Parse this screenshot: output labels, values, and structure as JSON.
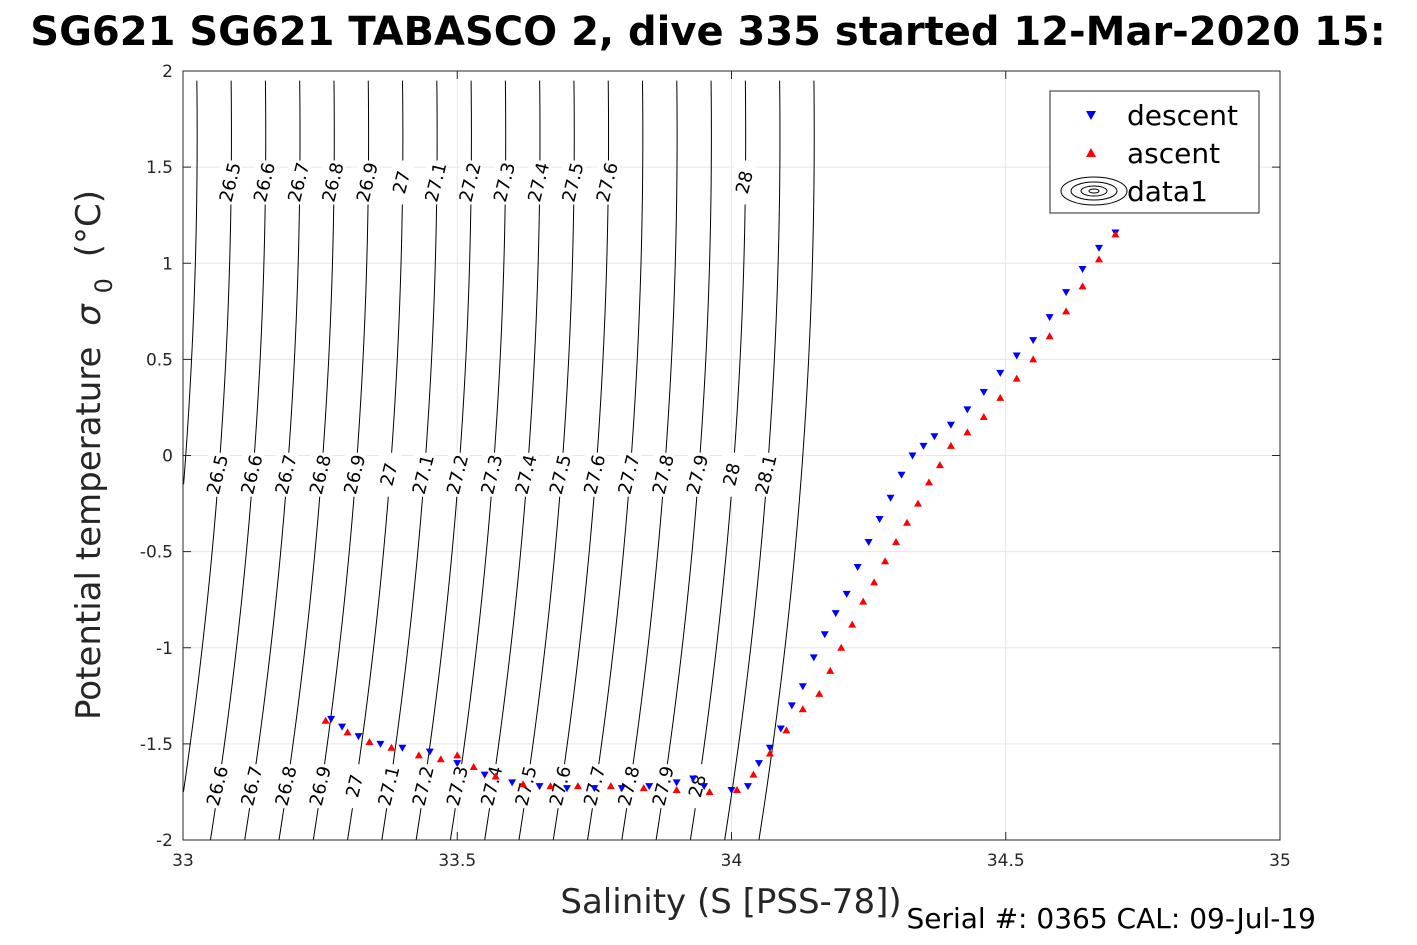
{
  "chart_data": {
    "type": "scatter",
    "title": "SG621 SG621 TABASCO 2, dive 335 started 12-Mar-2020 15:",
    "xlabel": "Salinity (S [PSS-78])",
    "ylabel": "Potential temperature",
    "ylabel_symbol": "σ",
    "ylabel_subscript": "0",
    "ylabel_unit": "(°C)",
    "xlim": [
      33,
      35
    ],
    "ylim": [
      -2,
      2
    ],
    "xticks": [
      33,
      33.5,
      34,
      34.5,
      35
    ],
    "xtick_labels": [
      "33",
      "33.5",
      "34",
      "34.5",
      "35"
    ],
    "yticks": [
      -2,
      -1.5,
      -1,
      -0.5,
      0,
      0.5,
      1,
      1.5,
      2
    ],
    "ytick_labels": [
      "-2",
      "-1.5",
      "-1",
      "-0.5",
      "0",
      "0.5",
      "1",
      "1.5",
      "2"
    ],
    "grid": true,
    "legend_position": "top-right",
    "footer": "Serial #: 0365  CAL: 09-Jul-19",
    "density_contours": {
      "levels": [
        "26.5",
        "26.6",
        "26.7",
        "26.8",
        "26.9",
        "27",
        "27.1",
        "27.2",
        "27.3",
        "27.4",
        "27.5",
        "27.6",
        "27.7",
        "27.8",
        "27.9",
        "28",
        "28.1"
      ],
      "labels_bottom": [
        "26.6",
        "26.7",
        "26.8",
        "26.9",
        "27",
        "27.1",
        "27.2",
        "27.3",
        "27.4",
        "27.5",
        "27.6",
        "27.7",
        "27.8",
        "27.9",
        "28"
      ],
      "labels_middle": [
        "26.5",
        "26.6",
        "26.7",
        "26.8",
        "26.9",
        "27",
        "27.1",
        "27.2",
        "27.3",
        "27.4",
        "27.5",
        "27.6",
        "27.7",
        "27.8",
        "27.9",
        "28",
        "28.1"
      ],
      "labels_top": [
        "26.5",
        "26.6",
        "26.7",
        "26.8",
        "26.9",
        "27",
        "27.1",
        "27.2",
        "27.3",
        "27.4",
        "27.5",
        "27.6",
        "28"
      ]
    },
    "series": [
      {
        "name": "descent",
        "marker": "triangle-down",
        "color": "#0000ff",
        "x": [
          33.27,
          33.29,
          33.32,
          33.36,
          33.4,
          33.45,
          33.5,
          33.55,
          33.6,
          33.65,
          33.7,
          33.75,
          33.8,
          33.85,
          33.9,
          33.93,
          33.95,
          34.0,
          34.03,
          34.05,
          34.07,
          34.09,
          34.11,
          34.13,
          34.15,
          34.17,
          34.19,
          34.21,
          34.23,
          34.25,
          34.27,
          34.29,
          34.31,
          34.33,
          34.35,
          34.37,
          34.4,
          34.43,
          34.46,
          34.49,
          34.52,
          34.55,
          34.58,
          34.61,
          34.64,
          34.67,
          34.7
        ],
        "y": [
          -1.37,
          -1.41,
          -1.46,
          -1.5,
          -1.52,
          -1.54,
          -1.6,
          -1.66,
          -1.7,
          -1.72,
          -1.73,
          -1.73,
          -1.73,
          -1.72,
          -1.7,
          -1.68,
          -1.72,
          -1.74,
          -1.72,
          -1.6,
          -1.52,
          -1.42,
          -1.3,
          -1.2,
          -1.05,
          -0.93,
          -0.82,
          -0.72,
          -0.58,
          -0.45,
          -0.33,
          -0.22,
          -0.1,
          0.0,
          0.05,
          0.1,
          0.16,
          0.24,
          0.33,
          0.43,
          0.52,
          0.6,
          0.72,
          0.85,
          0.97,
          1.08,
          1.16
        ]
      },
      {
        "name": "ascent",
        "marker": "triangle-up",
        "color": "#ff0000",
        "x": [
          33.26,
          33.3,
          33.34,
          33.38,
          33.43,
          33.47,
          33.5,
          33.53,
          33.57,
          33.62,
          33.67,
          33.72,
          33.78,
          33.84,
          33.9,
          33.96,
          34.01,
          34.04,
          34.07,
          34.1,
          34.13,
          34.16,
          34.18,
          34.2,
          34.22,
          34.24,
          34.26,
          34.28,
          34.3,
          34.32,
          34.34,
          34.36,
          34.38,
          34.4,
          34.43,
          34.46,
          34.49,
          34.52,
          34.55,
          34.58,
          34.61,
          34.64,
          34.67,
          34.7
        ],
        "y": [
          -1.38,
          -1.44,
          -1.49,
          -1.52,
          -1.56,
          -1.58,
          -1.56,
          -1.62,
          -1.67,
          -1.71,
          -1.72,
          -1.72,
          -1.72,
          -1.73,
          -1.74,
          -1.75,
          -1.74,
          -1.66,
          -1.55,
          -1.43,
          -1.32,
          -1.24,
          -1.12,
          -1.0,
          -0.88,
          -0.76,
          -0.66,
          -0.55,
          -0.45,
          -0.35,
          -0.25,
          -0.14,
          -0.05,
          0.05,
          0.12,
          0.2,
          0.3,
          0.4,
          0.5,
          0.62,
          0.75,
          0.88,
          1.02,
          1.15
        ]
      }
    ],
    "legend": [
      "descent",
      "ascent",
      "data1"
    ]
  }
}
